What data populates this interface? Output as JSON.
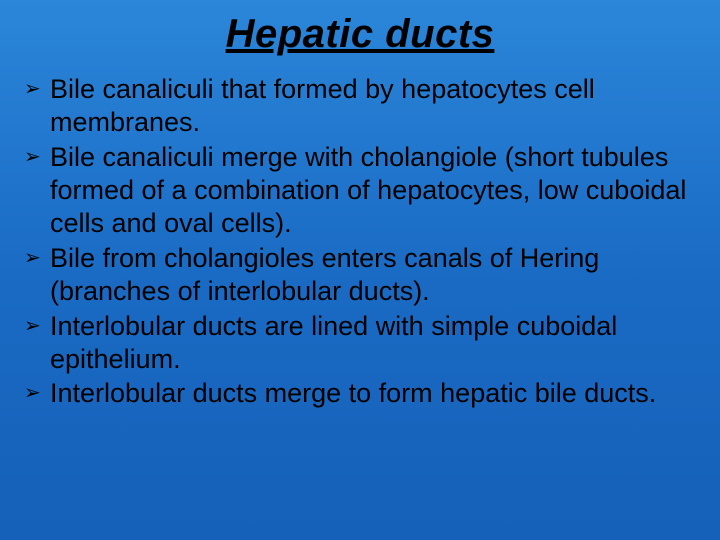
{
  "title": "Hepatic ducts",
  "bullet_marker": "➢",
  "bullets": [
    "Bile canaliculi that formed by hepatocytes cell membranes.",
    "Bile canaliculi merge with cholangiole (short tubules formed of a combination of hepatocytes, low cuboidal cells and oval cells).",
    "Bile from cholangioles enters canals of Hering (branches of interlobular ducts).",
    "Interlobular ducts are lined with simple cuboidal epithelium.",
    "Interlobular ducts merge to form hepatic bile ducts."
  ],
  "colors": {
    "background_top": "#2b86d9",
    "background_bottom": "#1560b8",
    "text": "#000000"
  },
  "typography": {
    "title_fontsize": 40,
    "title_style": "bold italic underline",
    "body_fontsize": 27,
    "font_family": "Arial"
  }
}
